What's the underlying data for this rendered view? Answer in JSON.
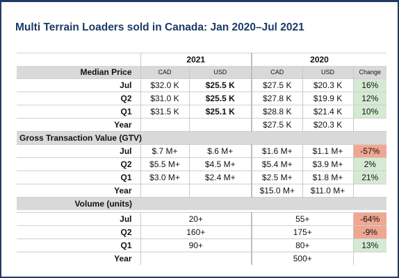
{
  "title": "Multi Terrain Loaders sold in Canada: Jan 2020–Jul 2021",
  "years": {
    "y2021": "2021",
    "y2020": "2020"
  },
  "columns": {
    "cad": "CAD",
    "usd": "USD",
    "change": "Change"
  },
  "median": {
    "label": "Median Price",
    "rows": [
      {
        "period": "Jul",
        "cad21": "$32.0 K",
        "usd21": "$25.5 K",
        "cad20": "$27.5 K",
        "usd20": "$20.3 K",
        "change": "16%"
      },
      {
        "period": "Q2",
        "cad21": "$31.0 K",
        "usd21": "$25.5 K",
        "cad20": "$27.8 K",
        "usd20": "$19.9 K",
        "change": "12%"
      },
      {
        "period": "Q1",
        "cad21": "$31.5 K",
        "usd21": "$25.1 K",
        "cad20": "$28.8 K",
        "usd20": "$21.4 K",
        "change": "10%"
      },
      {
        "period": "Year",
        "cad21": "",
        "usd21": "",
        "cad20": "$27.5 K",
        "usd20": "$20.3 K",
        "change": ""
      }
    ]
  },
  "gtv": {
    "label": "Gross Transaction Value (GTV)",
    "rows": [
      {
        "period": "Jul",
        "cad21": "$.7 M+",
        "usd21": "$.6 M+",
        "cad20": "$1.6 M+",
        "usd20": "$1.1 M+",
        "change": "-57%"
      },
      {
        "period": "Q2",
        "cad21": "$5.5 M+",
        "usd21": "$4.5 M+",
        "cad20": "$5.4 M+",
        "usd20": "$3.9 M+",
        "change": "2%"
      },
      {
        "period": "Q1",
        "cad21": "$3.0 M+",
        "usd21": "$2.4 M+",
        "cad20": "$2.5 M+",
        "usd20": "$1.8 M+",
        "change": "21%"
      },
      {
        "period": "Year",
        "cad21": "",
        "usd21": "",
        "cad20": "$15.0 M+",
        "usd20": "$11.0 M+",
        "change": ""
      }
    ]
  },
  "volume": {
    "label": "Volume (units)",
    "rows": [
      {
        "period": "Jul",
        "v21": "20+",
        "v20": "55+",
        "change": "-64%"
      },
      {
        "period": "Q2",
        "v21": "160+",
        "v20": "175+",
        "change": "-9%"
      },
      {
        "period": "Q1",
        "v21": "90+",
        "v20": "80+",
        "change": "13%"
      },
      {
        "period": "Year",
        "v21": "",
        "v20": "500+",
        "change": ""
      }
    ]
  },
  "colors": {
    "positive": "#d5ead2",
    "negative": "#f0a792",
    "header": "#d9d9d9",
    "title": "#1c3a66"
  }
}
